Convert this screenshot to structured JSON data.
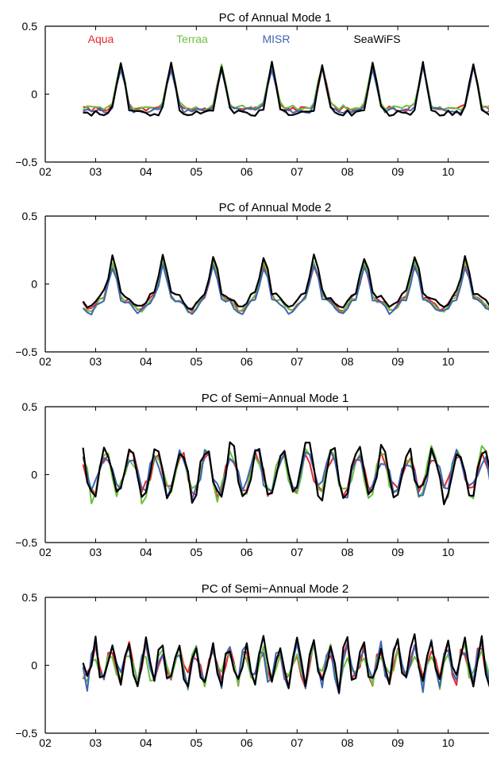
{
  "colors": {
    "Aqua": "#e8262b",
    "Terraa": "#6cbf3f",
    "MISR": "#3f63b2",
    "SeaWiFS": "#000000"
  },
  "chart_data": [
    {
      "type": "line",
      "title": "PC of Annual Mode 1",
      "xlabel": "",
      "ylabel": "",
      "xlim": [
        2002,
        2011
      ],
      "ylim": [
        -0.5,
        0.5
      ],
      "yticks": [
        -0.5,
        0,
        0.5
      ],
      "ytick_labels": [
        "−0.5",
        "0",
        "0.5"
      ],
      "xticks": [
        2002,
        2003,
        2004,
        2005,
        2006,
        2007,
        2008,
        2009,
        2010
      ],
      "xtick_labels": [
        "02",
        "03",
        "04",
        "05",
        "06",
        "07",
        "08",
        "09",
        "10"
      ],
      "legend": [
        "Aqua",
        "Terraa",
        "MISR",
        "SeaWiFS"
      ],
      "legend_position": "top",
      "grid": false,
      "kind": "annual1",
      "series": [
        {
          "name": "Aqua",
          "start": 2002.75,
          "end": 2011.0,
          "peak": 0.2,
          "trough": -0.11
        },
        {
          "name": "Terraa",
          "start": 2002.75,
          "end": 2011.0,
          "peak": 0.22,
          "trough": -0.1
        },
        {
          "name": "MISR",
          "start": 2002.75,
          "end": 2011.0,
          "peak": 0.19,
          "trough": -0.12
        },
        {
          "name": "SeaWiFS",
          "start": 2002.75,
          "end": 2010.95,
          "peak": 0.22,
          "trough": -0.14
        }
      ]
    },
    {
      "type": "line",
      "title": "PC of Annual Mode 2",
      "xlabel": "",
      "ylabel": "",
      "xlim": [
        2002,
        2011
      ],
      "ylim": [
        -0.5,
        0.5
      ],
      "yticks": [
        -0.5,
        0,
        0.5
      ],
      "ytick_labels": [
        "−0.5",
        "0",
        "0.5"
      ],
      "xticks": [
        2002,
        2003,
        2004,
        2005,
        2006,
        2007,
        2008,
        2009,
        2010
      ],
      "xtick_labels": [
        "02",
        "03",
        "04",
        "05",
        "06",
        "07",
        "08",
        "09",
        "10"
      ],
      "grid": false,
      "kind": "annual2",
      "series": [
        {
          "name": "Aqua",
          "start": 2002.75,
          "end": 2011.0,
          "peak": 0.18,
          "trough": -0.15
        },
        {
          "name": "Terraa",
          "start": 2002.75,
          "end": 2011.0,
          "peak": 0.2,
          "trough": -0.16
        },
        {
          "name": "MISR",
          "start": 2002.75,
          "end": 2011.0,
          "peak": 0.17,
          "trough": -0.17
        },
        {
          "name": "SeaWiFS",
          "start": 2002.75,
          "end": 2010.95,
          "peak": 0.24,
          "trough": -0.13
        }
      ]
    },
    {
      "type": "line",
      "title": "PC of Semi−Annual Mode 1",
      "xlabel": "",
      "ylabel": "",
      "xlim": [
        2002,
        2011
      ],
      "ylim": [
        -0.5,
        0.5
      ],
      "yticks": [
        -0.5,
        0,
        0.5
      ],
      "ytick_labels": [
        "−0.5",
        "0",
        "0.5"
      ],
      "xticks": [
        2002,
        2003,
        2004,
        2005,
        2006,
        2007,
        2008,
        2009,
        2010
      ],
      "xtick_labels": [
        "02",
        "03",
        "04",
        "05",
        "06",
        "07",
        "08",
        "09",
        "10"
      ],
      "grid": false,
      "kind": "semi1",
      "series": [
        {
          "name": "Aqua",
          "start": 2002.75,
          "end": 2011.0,
          "peak": 0.14,
          "trough": -0.12
        },
        {
          "name": "Terraa",
          "start": 2002.75,
          "end": 2011.0,
          "peak": 0.16,
          "trough": -0.15
        },
        {
          "name": "MISR",
          "start": 2002.75,
          "end": 2011.0,
          "peak": 0.15,
          "trough": -0.13
        },
        {
          "name": "SeaWiFS",
          "start": 2002.75,
          "end": 2010.95,
          "peak": 0.2,
          "trough": -0.18
        }
      ]
    },
    {
      "type": "line",
      "title": "PC of Semi−Annual Mode 2",
      "xlabel": "",
      "ylabel": "",
      "xlim": [
        2002,
        2011
      ],
      "ylim": [
        -0.5,
        0.5
      ],
      "yticks": [
        -0.5,
        0,
        0.5
      ],
      "ytick_labels": [
        "−0.5",
        "0",
        "0.5"
      ],
      "xticks": [
        2002,
        2003,
        2004,
        2005,
        2006,
        2007,
        2008,
        2009,
        2010
      ],
      "xtick_labels": [
        "02",
        "03",
        "04",
        "05",
        "06",
        "07",
        "08",
        "09",
        "10"
      ],
      "grid": false,
      "kind": "semi2",
      "series": [
        {
          "name": "Aqua",
          "start": 2002.75,
          "end": 2011.0,
          "peak": 0.13,
          "trough": -0.12
        },
        {
          "name": "Terraa",
          "start": 2002.75,
          "end": 2011.0,
          "peak": 0.12,
          "trough": -0.13
        },
        {
          "name": "MISR",
          "start": 2002.75,
          "end": 2011.0,
          "peak": 0.14,
          "trough": -0.14
        },
        {
          "name": "SeaWiFS",
          "start": 2002.75,
          "end": 2010.95,
          "peak": 0.16,
          "trough": -0.15
        }
      ]
    }
  ]
}
